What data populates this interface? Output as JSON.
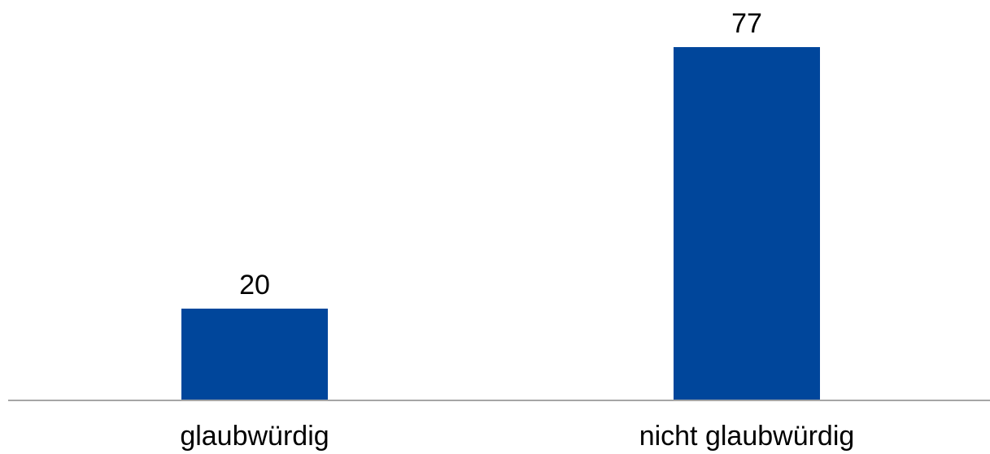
{
  "chart_data": {
    "type": "bar",
    "categories": [
      "glaubwürdig",
      "nicht glaubwürdig"
    ],
    "values": [
      20,
      77
    ],
    "data_labels": [
      "20",
      "77"
    ],
    "title": "",
    "xlabel": "",
    "ylabel": "",
    "ylim": [
      0,
      77
    ],
    "grid": false,
    "legend": "none",
    "colors": {
      "bar": "#00469B",
      "axis": "#A6A6A6"
    }
  }
}
